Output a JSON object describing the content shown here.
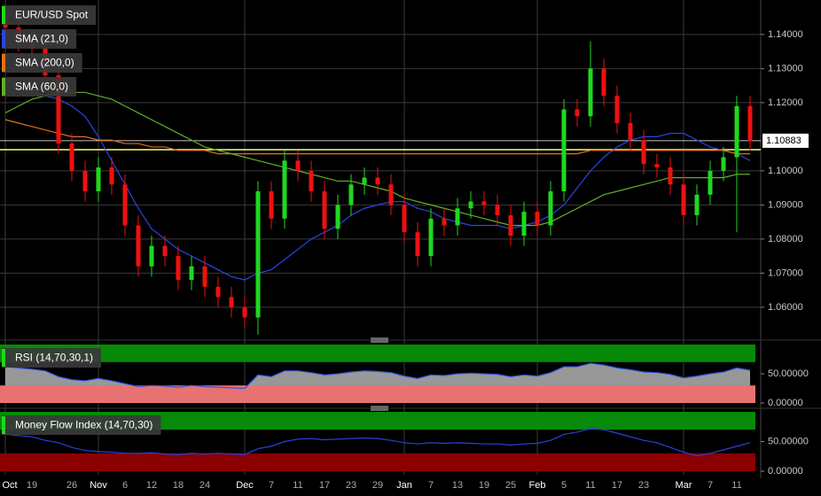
{
  "chart_data": [
    {
      "type": "candlestick",
      "name": "EUR/USD Spot",
      "up_color": "#1fd81f",
      "down_color": "#f01010",
      "categories": [
        "Oct",
        null,
        "19",
        null,
        null,
        "26",
        null,
        "Nov",
        null,
        "6",
        null,
        "12",
        null,
        "18",
        null,
        "24",
        null,
        null,
        "Dec",
        null,
        "7",
        null,
        "11",
        null,
        "17",
        null,
        "23",
        null,
        "29",
        null,
        "Jan",
        null,
        "7",
        null,
        "13",
        null,
        "19",
        null,
        "25",
        null,
        "Feb",
        null,
        "5",
        null,
        "11",
        null,
        "17",
        null,
        "23",
        null,
        null,
        "Mar",
        null,
        "7",
        null,
        "11",
        null
      ],
      "open": [
        1.146,
        1.142,
        1.138,
        1.136,
        1.128,
        1.108,
        1.1,
        1.094,
        1.101,
        1.096,
        1.084,
        1.072,
        1.078,
        1.075,
        1.068,
        1.072,
        1.066,
        1.063,
        1.06,
        1.057,
        1.094,
        1.086,
        1.103,
        1.1,
        1.094,
        1.083,
        1.09,
        1.096,
        1.098,
        1.096,
        1.09,
        1.082,
        1.075,
        1.086,
        1.084,
        1.089,
        1.091,
        1.09,
        1.087,
        1.081,
        1.088,
        1.084,
        1.094,
        1.118,
        1.116,
        1.13,
        1.122,
        1.114,
        1.109,
        1.102,
        1.101,
        1.096,
        1.087,
        1.093,
        1.1,
        1.104,
        1.119
      ],
      "high": [
        1.149,
        1.145,
        1.141,
        1.139,
        1.131,
        1.111,
        1.103,
        1.104,
        1.104,
        1.099,
        1.087,
        1.081,
        1.081,
        1.078,
        1.075,
        1.075,
        1.069,
        1.066,
        1.063,
        1.097,
        1.097,
        1.106,
        1.106,
        1.103,
        1.097,
        1.093,
        1.099,
        1.101,
        1.101,
        1.099,
        1.093,
        1.085,
        1.089,
        1.089,
        1.092,
        1.094,
        1.094,
        1.093,
        1.09,
        1.091,
        1.091,
        1.097,
        1.121,
        1.121,
        1.138,
        1.133,
        1.125,
        1.117,
        1.112,
        1.105,
        1.104,
        1.099,
        1.096,
        1.103,
        1.107,
        1.122,
        1.122
      ],
      "low": [
        1.139,
        1.135,
        1.133,
        1.125,
        1.105,
        1.097,
        1.091,
        1.091,
        1.093,
        1.081,
        1.069,
        1.069,
        1.072,
        1.065,
        1.065,
        1.063,
        1.06,
        1.057,
        1.054,
        1.052,
        1.083,
        1.083,
        1.097,
        1.091,
        1.08,
        1.08,
        1.087,
        1.093,
        1.093,
        1.087,
        1.079,
        1.072,
        1.072,
        1.081,
        1.081,
        1.086,
        1.087,
        1.084,
        1.078,
        1.078,
        1.081,
        1.081,
        1.091,
        1.113,
        1.113,
        1.119,
        1.111,
        1.106,
        1.099,
        1.098,
        1.093,
        1.084,
        1.084,
        1.09,
        1.097,
        1.082,
        1.106
      ],
      "close": [
        1.142,
        1.138,
        1.136,
        1.128,
        1.108,
        1.1,
        1.094,
        1.101,
        1.096,
        1.084,
        1.072,
        1.078,
        1.075,
        1.068,
        1.072,
        1.066,
        1.063,
        1.06,
        1.057,
        1.094,
        1.086,
        1.103,
        1.1,
        1.094,
        1.083,
        1.09,
        1.096,
        1.098,
        1.096,
        1.09,
        1.082,
        1.075,
        1.086,
        1.084,
        1.089,
        1.091,
        1.09,
        1.087,
        1.081,
        1.088,
        1.084,
        1.094,
        1.118,
        1.116,
        1.13,
        1.122,
        1.114,
        1.109,
        1.102,
        1.101,
        1.096,
        1.087,
        1.093,
        1.1,
        1.104,
        1.119,
        1.1088
      ],
      "series": [
        {
          "name": "SMA (21,0)",
          "color": "#2a45e0",
          "values": [
            1.127,
            1.125,
            1.123,
            1.122,
            1.121,
            1.119,
            1.116,
            1.11,
            1.103,
            1.096,
            1.089,
            1.083,
            1.08,
            1.077,
            1.075,
            1.073,
            1.071,
            1.069,
            1.068,
            1.07,
            1.071,
            1.074,
            1.077,
            1.08,
            1.082,
            1.084,
            1.087,
            1.089,
            1.09,
            1.091,
            1.091,
            1.089,
            1.088,
            1.086,
            1.085,
            1.084,
            1.084,
            1.084,
            1.083,
            1.084,
            1.085,
            1.087,
            1.09,
            1.095,
            1.1,
            1.104,
            1.107,
            1.109,
            1.11,
            1.11,
            1.111,
            1.111,
            1.109,
            1.107,
            1.106,
            1.105,
            1.103
          ]
        },
        {
          "name": "SMA (200,0)",
          "color": "#e07020",
          "values": [
            1.115,
            1.114,
            1.113,
            1.112,
            1.111,
            1.11,
            1.11,
            1.109,
            1.109,
            1.108,
            1.108,
            1.107,
            1.107,
            1.106,
            1.106,
            1.106,
            1.105,
            1.105,
            1.105,
            1.105,
            1.105,
            1.105,
            1.105,
            1.105,
            1.105,
            1.105,
            1.105,
            1.105,
            1.105,
            1.105,
            1.105,
            1.105,
            1.105,
            1.105,
            1.105,
            1.105,
            1.105,
            1.105,
            1.105,
            1.105,
            1.105,
            1.105,
            1.105,
            1.105,
            1.106,
            1.106,
            1.106,
            1.106,
            1.106,
            1.106,
            1.106,
            1.106,
            1.106,
            1.106,
            1.106,
            1.105,
            1.105
          ]
        },
        {
          "name": "SMA (60,0)",
          "color": "#62b024",
          "values": [
            1.117,
            1.119,
            1.121,
            1.122,
            1.123,
            1.123,
            1.123,
            1.122,
            1.121,
            1.119,
            1.117,
            1.115,
            1.113,
            1.111,
            1.109,
            1.107,
            1.106,
            1.105,
            1.104,
            1.103,
            1.102,
            1.101,
            1.1,
            1.099,
            1.098,
            1.097,
            1.097,
            1.096,
            1.095,
            1.094,
            1.092,
            1.091,
            1.09,
            1.089,
            1.088,
            1.087,
            1.086,
            1.085,
            1.084,
            1.084,
            1.084,
            1.085,
            1.087,
            1.089,
            1.091,
            1.093,
            1.094,
            1.095,
            1.096,
            1.097,
            1.098,
            1.098,
            1.098,
            1.098,
            1.098,
            1.099,
            1.099
          ]
        }
      ],
      "ylim": [
        1.0514,
        1.1501
      ],
      "yticks": [
        {
          "value": 1.06,
          "label": "1.06000"
        },
        {
          "value": 1.07,
          "label": "1.07000"
        },
        {
          "value": 1.08,
          "label": "1.08000"
        },
        {
          "value": 1.09,
          "label": "1.09000"
        },
        {
          "value": 1.1,
          "label": "1.10000"
        },
        {
          "value": 1.12,
          "label": "1.12000"
        },
        {
          "value": 1.13,
          "label": "1.13000"
        },
        {
          "value": 1.14,
          "label": "1.14000"
        }
      ],
      "grid": true,
      "last_price": 1.10883,
      "hline": 1.1062,
      "hline_color": "#ffff70"
    },
    {
      "type": "line",
      "name": "RSI (14,70,30,1)",
      "color": "#3050e0",
      "fill": "#a8a8a8",
      "values": [
        62,
        60,
        58,
        55,
        45,
        40,
        38,
        42,
        38,
        33,
        28,
        30,
        29,
        27,
        30,
        28,
        27,
        26,
        25,
        48,
        45,
        55,
        55,
        52,
        48,
        50,
        53,
        55,
        54,
        52,
        46,
        42,
        48,
        47,
        50,
        51,
        50,
        49,
        45,
        48,
        46,
        52,
        62,
        62,
        68,
        65,
        60,
        57,
        53,
        52,
        49,
        43,
        46,
        50,
        53,
        60,
        56
      ],
      "ylim": [
        0,
        100
      ],
      "yticks": [
        {
          "value": 50,
          "label": "50.00000"
        },
        {
          "value": 0,
          "label": "0.00000"
        }
      ],
      "grid": false,
      "bands": [
        {
          "from": 70,
          "to": 100,
          "color": "#078a07"
        },
        {
          "from": 0,
          "to": 30,
          "color": "#e87272"
        }
      ]
    },
    {
      "type": "line",
      "name": "Money Flow Index (14,70,30)",
      "color": "#2a40d8",
      "values": [
        62,
        60,
        58,
        52,
        48,
        40,
        35,
        33,
        32,
        30,
        30,
        31,
        29,
        28,
        30,
        29,
        30,
        29,
        28,
        38,
        42,
        50,
        54,
        55,
        53,
        54,
        55,
        56,
        55,
        52,
        48,
        46,
        48,
        47,
        48,
        47,
        46,
        46,
        44,
        46,
        47,
        52,
        62,
        66,
        72,
        70,
        64,
        58,
        52,
        48,
        40,
        32,
        26,
        30,
        36,
        42,
        48
      ],
      "ylim": [
        0,
        100
      ],
      "yticks": [
        {
          "value": 50,
          "label": "50.00000"
        },
        {
          "value": 0,
          "label": "0.00000"
        }
      ],
      "grid": false,
      "bands": [
        {
          "from": 70,
          "to": 100,
          "color": "#078a07"
        },
        {
          "from": 0,
          "to": 30,
          "color": "#8a0000"
        }
      ]
    }
  ]
}
